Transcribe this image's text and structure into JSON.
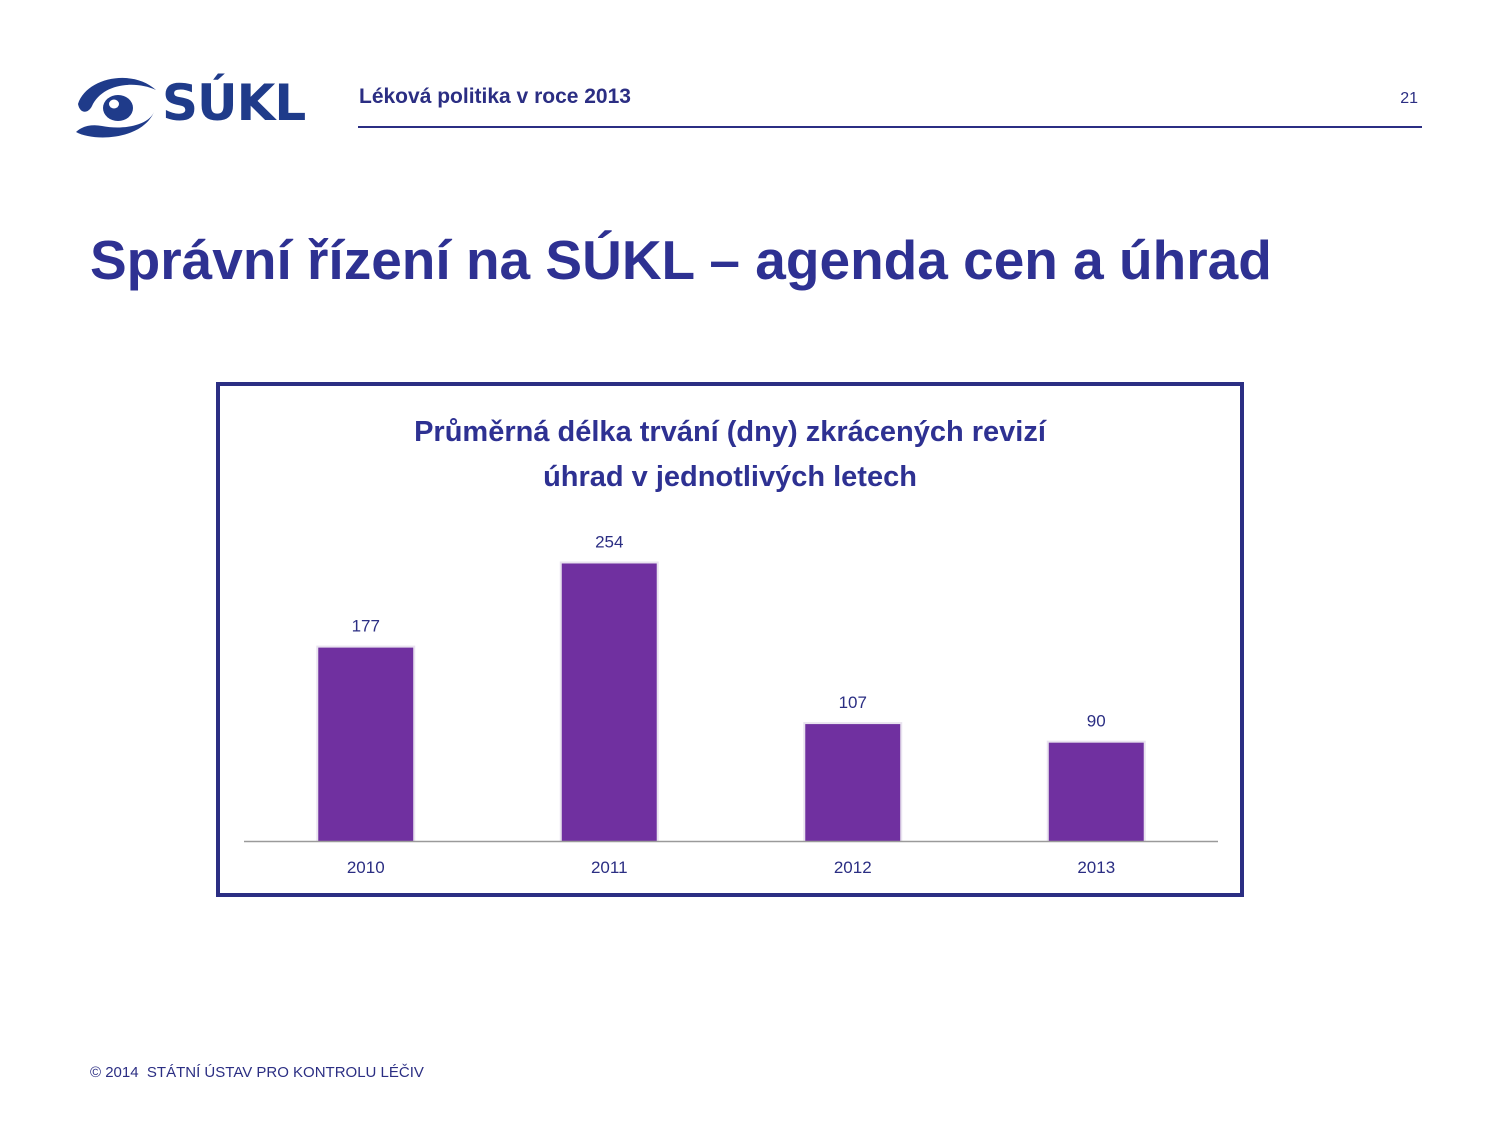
{
  "header": {
    "logo_text": "SÚKL",
    "title": "Léková politika v roce 2013",
    "page_number": "21"
  },
  "slide": {
    "title": "Správní řízení na SÚKL – agenda cen a úhrad"
  },
  "footer": {
    "text": "© 2014  STÁTNÍ ÚSTAV PRO KONTROLU LÉČIV"
  },
  "colors": {
    "brand": "#2b2e83",
    "logo": "#1f3b8a",
    "bar": "#7030a0",
    "axis": "#9a9a9a"
  },
  "chart_data": {
    "type": "bar",
    "title_lines": [
      "Průměrná délka trvání (dny) zkrácených revizí",
      "úhrad v jednotlivých letech"
    ],
    "categories": [
      "2010",
      "2011",
      "2012",
      "2013"
    ],
    "values": [
      177,
      254,
      107,
      90
    ],
    "data_labels": [
      "177",
      "254",
      "107",
      "90"
    ],
    "xlabel": "",
    "ylabel": "",
    "ylim": [
      0,
      270
    ],
    "grid": false,
    "legend": "none"
  }
}
